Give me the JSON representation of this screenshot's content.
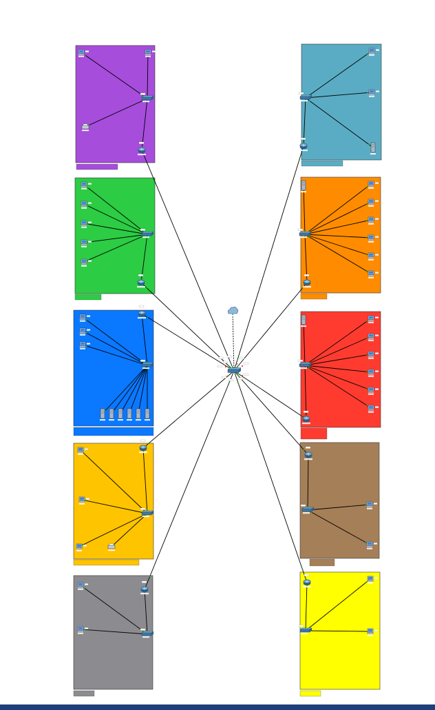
{
  "colors": {
    "background": "#ffffff",
    "bottom_bar": "#1f3f7a",
    "link": "#000000",
    "port_label_bg": "#ffffff"
  },
  "core": {
    "switch_label": "",
    "cloud_label": ""
  },
  "zones": [
    {
      "id": "purple",
      "color": "#a64ddb",
      "side": "left",
      "label": "",
      "pcs": 2,
      "printer": true,
      "servers": 0
    },
    {
      "id": "green",
      "color": "#2ccc44",
      "side": "left",
      "label": "",
      "pcs": 5,
      "printer": false,
      "servers": 0
    },
    {
      "id": "blue",
      "color": "#0a78ff",
      "side": "left",
      "label": "",
      "pcs": 3,
      "printer": false,
      "servers": 6
    },
    {
      "id": "gold",
      "color": "#ffc400",
      "side": "left",
      "label": "",
      "pcs": 3,
      "printer": true,
      "servers": 0
    },
    {
      "id": "gray",
      "color": "#8c8c90",
      "side": "left",
      "label": "",
      "pcs": 2,
      "printer": false,
      "servers": 0
    },
    {
      "id": "teal",
      "color": "#5aacc4",
      "side": "right",
      "label": "",
      "pcs": 2,
      "printer": false,
      "servers": 1
    },
    {
      "id": "orange",
      "color": "#ff8c00",
      "side": "right",
      "label": "",
      "pcs": 6,
      "printer": false,
      "servers": 1
    },
    {
      "id": "red",
      "color": "#ff3b30",
      "side": "right",
      "label": "",
      "pcs": 6,
      "printer": false,
      "servers": 1
    },
    {
      "id": "brown",
      "color": "#a57f58",
      "side": "right",
      "label": "",
      "pcs": 2,
      "printer": false,
      "servers": 0
    },
    {
      "id": "yellow",
      "color": "#ffff00",
      "side": "right",
      "label": "",
      "pcs": 2,
      "printer": false,
      "servers": 0
    }
  ]
}
